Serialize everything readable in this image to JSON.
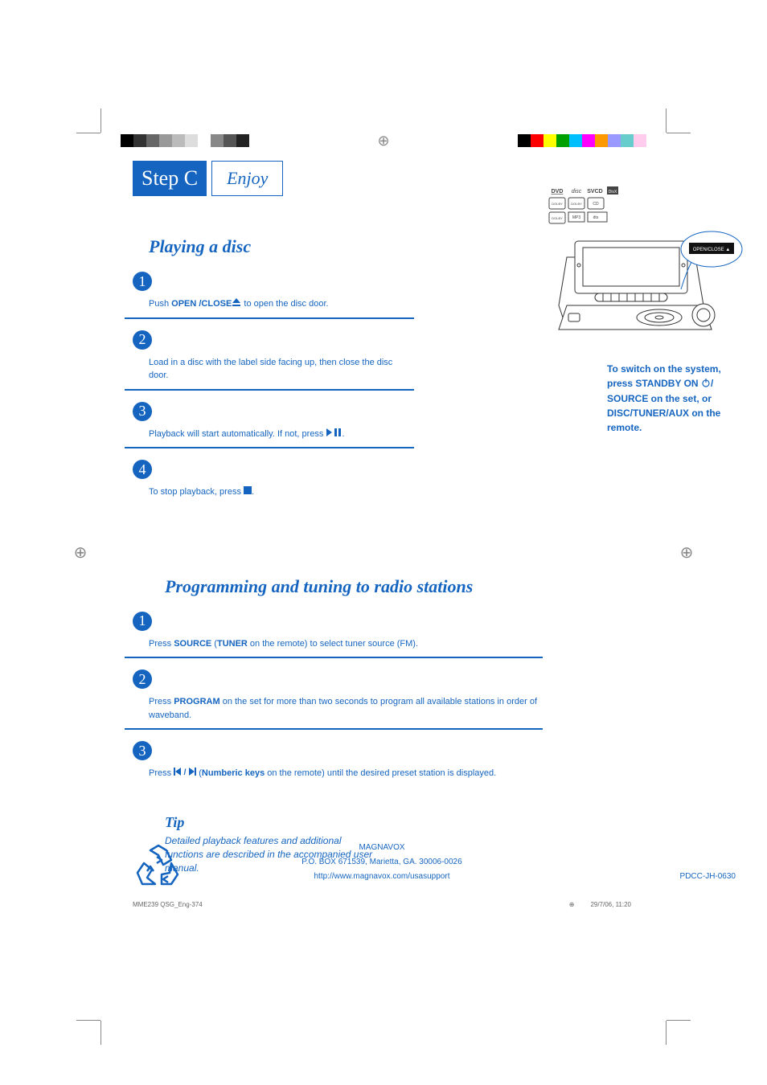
{
  "print": {
    "top_colors_left": [
      "#000000",
      "#333333",
      "#666666",
      "#999999",
      "#bbbbbb",
      "#dddddd",
      "#ffffff",
      "#888888",
      "#555555",
      "#222222"
    ],
    "top_colors_right": [
      "#000000",
      "#ff0000",
      "#ffff00",
      "#00a000",
      "#00bfff",
      "#ff00ff",
      "#ff9900",
      "#9999ff",
      "#66cccc",
      "#ffccee"
    ],
    "filename": "MME239 QSG_Eng-37",
    "page_num": "4",
    "timestamp": "29/7/06, 11:20"
  },
  "header": {
    "step_label": "Step C",
    "enjoy_label": "Enjoy"
  },
  "section1": {
    "title": "Playing a disc",
    "steps": [
      {
        "pre": "Push ",
        "bold": "OPEN /CLOSE",
        "icon": "eject",
        "post": " to open the disc door."
      },
      {
        "pre": "Load in a disc with the label side facing up, then close the disc door.",
        "bold": "",
        "post": ""
      },
      {
        "pre": "Playback will start automatically. If not, press ",
        "icon": "play-pause",
        "post": "."
      },
      {
        "pre": "To stop playback, press ",
        "icon": "stop",
        "post": "."
      }
    ]
  },
  "switch_note": {
    "l1": "To switch on the system,",
    "l2_a": "press ",
    "l2_b": "STANDBY ON",
    "l2_c": "/",
    "l3_a": "SOURCE",
    "l3_b": " on the set, or",
    "l4_a": "DISC/TUNER/AUX",
    "l4_b": " on the",
    "l5": "remote."
  },
  "section2": {
    "title": "Programming and tuning to radio stations",
    "steps": [
      {
        "parts": [
          {
            "t": "Press "
          },
          {
            "b": "SOURCE"
          },
          {
            "t": " ("
          },
          {
            "b": "TUNER"
          },
          {
            "t": " on the remote) to select tuner source (FM)."
          }
        ]
      },
      {
        "parts": [
          {
            "t": "Press "
          },
          {
            "b": "PROGRAM"
          },
          {
            "t": " on the set for more than two seconds to program all available stations in order of waveband."
          }
        ]
      },
      {
        "parts": [
          {
            "t": "Press "
          },
          {
            "icon": "prev-next"
          },
          {
            "t": " ("
          },
          {
            "b": "Numberic keys"
          },
          {
            "t": " on the remote) until the desired preset station is displayed."
          }
        ]
      }
    ]
  },
  "tip": {
    "title": "Tip",
    "text": "Detailed playback features and additional functions are described in the accompanied user manual."
  },
  "footer": {
    "brand": "MAGNAVOX",
    "address": "P.O. BOX 671539, Marietta, GA. 30006-0026",
    "url": "http://www.magnavox.com/usasupport",
    "code": "PDCC-JH-0630"
  },
  "device": {
    "button_label": "OPEN/CLOSE",
    "formats": [
      "DVD",
      "SVCD",
      "DivX",
      "DOLBY",
      "MP3",
      "DTS"
    ]
  },
  "colors": {
    "accent": "#1565c0"
  }
}
